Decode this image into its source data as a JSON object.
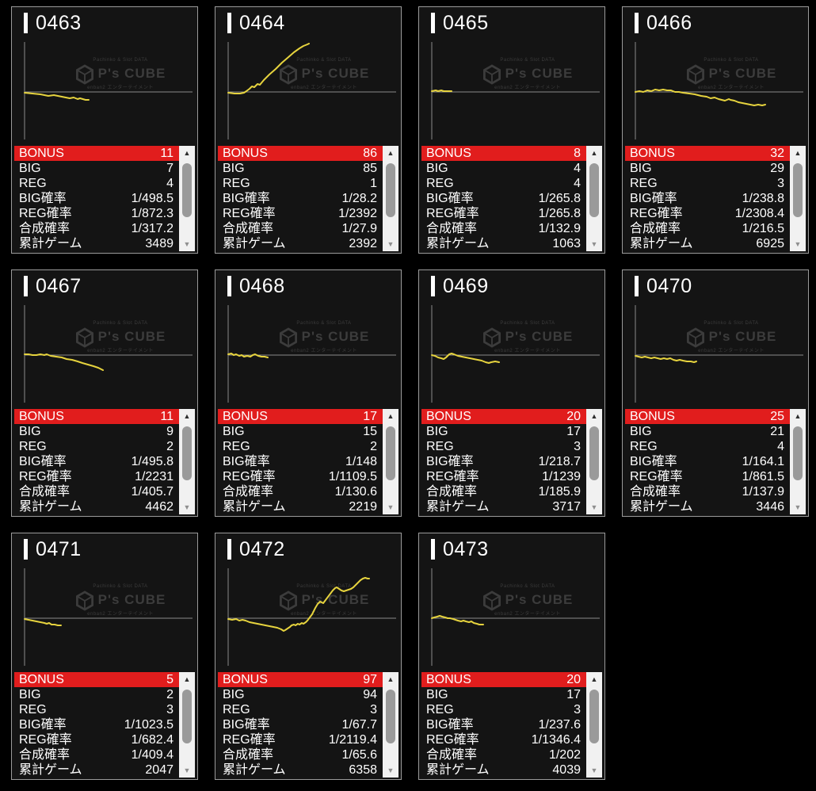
{
  "watermark": {
    "top": "Pachinko & Slot DATA",
    "brand": "P's CUBE",
    "bottom": "enban2 エンターテイメント"
  },
  "table_labels": [
    "BONUS",
    "BIG",
    "REG",
    "BIG確率",
    "REG確率",
    "合成確率",
    "累計ゲーム"
  ],
  "scrollbar": {
    "up_arrow": "▲",
    "down_arrow": "▼"
  },
  "colors": {
    "background": "#000000",
    "panel_bg": "#141414",
    "panel_border": "#9b9b9b",
    "bonus_row_bg": "#e11d1d",
    "chart_line": "#e6d33e",
    "axis": "#8a8a8a",
    "watermark": "#3c3c3c",
    "text": "#ffffff"
  },
  "chart_data": {
    "type": "line",
    "note": "slump graphs; points are svg coords, horizontal axis at y=67"
  },
  "machines": [
    {
      "id": "0463",
      "bonus": "11",
      "big": "7",
      "reg": "4",
      "big_rate": "1/498.5",
      "reg_rate": "1/872.3",
      "combined_rate": "1/317.2",
      "total_games": "3489",
      "chart_points": [
        [
          16,
          68
        ],
        [
          26,
          69
        ],
        [
          36,
          70
        ],
        [
          46,
          72
        ],
        [
          53,
          71
        ],
        [
          63,
          73
        ],
        [
          73,
          75
        ],
        [
          78,
          74
        ],
        [
          83,
          76
        ],
        [
          86,
          75
        ],
        [
          93,
          77
        ],
        [
          97,
          77
        ]
      ]
    },
    {
      "id": "0464",
      "bonus": "86",
      "big": "85",
      "reg": "1",
      "big_rate": "1/28.2",
      "reg_rate": "1/2392",
      "combined_rate": "1/27.9",
      "total_games": "2392",
      "chart_points": [
        [
          16,
          68
        ],
        [
          24,
          69
        ],
        [
          31,
          69
        ],
        [
          36,
          68
        ],
        [
          39,
          66
        ],
        [
          43,
          63
        ],
        [
          46,
          60
        ],
        [
          49,
          61
        ],
        [
          53,
          57
        ],
        [
          56,
          58
        ],
        [
          61,
          52
        ],
        [
          68,
          45
        ],
        [
          76,
          38
        ],
        [
          84,
          30
        ],
        [
          91,
          24
        ],
        [
          99,
          17
        ],
        [
          106,
          12
        ],
        [
          111,
          9
        ],
        [
          116,
          7
        ],
        [
          118,
          6
        ]
      ]
    },
    {
      "id": "0465",
      "bonus": "8",
      "big": "4",
      "reg": "4",
      "big_rate": "1/265.8",
      "reg_rate": "1/265.8",
      "combined_rate": "1/132.9",
      "total_games": "1063",
      "chart_points": [
        [
          16,
          66
        ],
        [
          21,
          65
        ],
        [
          24,
          66
        ],
        [
          28,
          65
        ],
        [
          31,
          66
        ],
        [
          36,
          66
        ],
        [
          41,
          66
        ]
      ]
    },
    {
      "id": "0466",
      "bonus": "32",
      "big": "29",
      "reg": "3",
      "big_rate": "1/238.8",
      "reg_rate": "1/2308.4",
      "combined_rate": "1/216.5",
      "total_games": "6925",
      "chart_points": [
        [
          16,
          67
        ],
        [
          21,
          66
        ],
        [
          26,
          67
        ],
        [
          31,
          65
        ],
        [
          36,
          66
        ],
        [
          41,
          64
        ],
        [
          46,
          65
        ],
        [
          51,
          64
        ],
        [
          56,
          65
        ],
        [
          61,
          65
        ],
        [
          66,
          67
        ],
        [
          71,
          67
        ],
        [
          76,
          68
        ],
        [
          84,
          69
        ],
        [
          91,
          70
        ],
        [
          99,
          72
        ],
        [
          106,
          73
        ],
        [
          111,
          75
        ],
        [
          116,
          74
        ],
        [
          121,
          76
        ],
        [
          129,
          78
        ],
        [
          134,
          76
        ],
        [
          136,
          77
        ],
        [
          141,
          78
        ],
        [
          146,
          80
        ],
        [
          151,
          81
        ],
        [
          156,
          82
        ],
        [
          161,
          83
        ],
        [
          166,
          84
        ],
        [
          171,
          83
        ],
        [
          176,
          84
        ],
        [
          180,
          83
        ]
      ]
    },
    {
      "id": "0467",
      "bonus": "11",
      "big": "9",
      "reg": "2",
      "big_rate": "1/495.8",
      "reg_rate": "1/2231",
      "combined_rate": "1/405.7",
      "total_games": "4462",
      "chart_points": [
        [
          16,
          66
        ],
        [
          21,
          66
        ],
        [
          26,
          67
        ],
        [
          31,
          67
        ],
        [
          36,
          66
        ],
        [
          41,
          67
        ],
        [
          44,
          66
        ],
        [
          49,
          68
        ],
        [
          56,
          69
        ],
        [
          63,
          70
        ],
        [
          69,
          72
        ],
        [
          76,
          73
        ],
        [
          83,
          75
        ],
        [
          89,
          77
        ],
        [
          96,
          79
        ],
        [
          103,
          81
        ],
        [
          109,
          83
        ],
        [
          113,
          85
        ],
        [
          115,
          86
        ]
      ]
    },
    {
      "id": "0468",
      "bonus": "17",
      "big": "15",
      "reg": "2",
      "big_rate": "1/148",
      "reg_rate": "1/1109.5",
      "combined_rate": "1/130.6",
      "total_games": "2219",
      "chart_points": [
        [
          16,
          66
        ],
        [
          20,
          65
        ],
        [
          23,
          67
        ],
        [
          26,
          66
        ],
        [
          30,
          68
        ],
        [
          33,
          67
        ],
        [
          36,
          69
        ],
        [
          40,
          68
        ],
        [
          44,
          69
        ],
        [
          47,
          67
        ],
        [
          50,
          66
        ],
        [
          54,
          68
        ],
        [
          58,
          69
        ],
        [
          62,
          69
        ],
        [
          66,
          70
        ]
      ]
    },
    {
      "id": "0469",
      "bonus": "20",
      "big": "17",
      "reg": "3",
      "big_rate": "1/218.7",
      "reg_rate": "1/1239",
      "combined_rate": "1/185.9",
      "total_games": "3717",
      "chart_points": [
        [
          16,
          67
        ],
        [
          20,
          68
        ],
        [
          24,
          70
        ],
        [
          28,
          71
        ],
        [
          31,
          72
        ],
        [
          34,
          70
        ],
        [
          38,
          66
        ],
        [
          41,
          65
        ],
        [
          44,
          66
        ],
        [
          49,
          68
        ],
        [
          54,
          69
        ],
        [
          59,
          70
        ],
        [
          64,
          71
        ],
        [
          69,
          72
        ],
        [
          74,
          73
        ],
        [
          79,
          74
        ],
        [
          84,
          76
        ],
        [
          88,
          77
        ],
        [
          91,
          76
        ],
        [
          96,
          75
        ],
        [
          101,
          76
        ]
      ]
    },
    {
      "id": "0470",
      "bonus": "25",
      "big": "21",
      "reg": "4",
      "big_rate": "1/164.1",
      "reg_rate": "1/861.5",
      "combined_rate": "1/137.9",
      "total_games": "3446",
      "chart_points": [
        [
          16,
          68
        ],
        [
          20,
          69
        ],
        [
          24,
          70
        ],
        [
          28,
          69
        ],
        [
          32,
          70
        ],
        [
          36,
          71
        ],
        [
          40,
          70
        ],
        [
          44,
          71
        ],
        [
          48,
          72
        ],
        [
          52,
          71
        ],
        [
          56,
          72
        ],
        [
          60,
          71
        ],
        [
          64,
          73
        ],
        [
          68,
          74
        ],
        [
          72,
          73
        ],
        [
          76,
          74
        ],
        [
          81,
          75
        ],
        [
          86,
          75
        ],
        [
          90,
          76
        ],
        [
          93,
          75
        ]
      ]
    },
    {
      "id": "0471",
      "bonus": "5",
      "big": "2",
      "reg": "3",
      "big_rate": "1/1023.5",
      "reg_rate": "1/682.4",
      "combined_rate": "1/409.4",
      "total_games": "2047",
      "chart_points": [
        [
          16,
          68
        ],
        [
          21,
          69
        ],
        [
          26,
          70
        ],
        [
          31,
          71
        ],
        [
          36,
          72
        ],
        [
          41,
          73
        ],
        [
          44,
          74
        ],
        [
          47,
          73
        ],
        [
          50,
          75
        ],
        [
          54,
          75
        ],
        [
          58,
          76
        ],
        [
          62,
          76
        ]
      ]
    },
    {
      "id": "0472",
      "bonus": "97",
      "big": "94",
      "reg": "3",
      "big_rate": "1/67.7",
      "reg_rate": "1/2119.4",
      "combined_rate": "1/65.6",
      "total_games": "6358",
      "chart_points": [
        [
          16,
          68
        ],
        [
          21,
          69
        ],
        [
          26,
          68
        ],
        [
          30,
          70
        ],
        [
          34,
          69
        ],
        [
          38,
          70
        ],
        [
          43,
          72
        ],
        [
          48,
          73
        ],
        [
          53,
          74
        ],
        [
          58,
          75
        ],
        [
          63,
          76
        ],
        [
          68,
          77
        ],
        [
          73,
          78
        ],
        [
          78,
          79
        ],
        [
          83,
          81
        ],
        [
          86,
          83
        ],
        [
          88,
          82
        ],
        [
          91,
          80
        ],
        [
          94,
          78
        ],
        [
          96,
          76
        ],
        [
          99,
          75
        ],
        [
          101,
          76
        ],
        [
          104,
          74
        ],
        [
          106,
          75
        ],
        [
          109,
          73
        ],
        [
          111,
          74
        ],
        [
          114,
          72
        ],
        [
          116,
          70
        ],
        [
          119,
          66
        ],
        [
          122,
          62
        ],
        [
          124,
          58
        ],
        [
          126,
          54
        ],
        [
          129,
          49
        ],
        [
          132,
          46
        ],
        [
          134,
          47
        ],
        [
          136,
          48
        ],
        [
          139,
          44
        ],
        [
          142,
          40
        ],
        [
          145,
          36
        ],
        [
          148,
          32
        ],
        [
          151,
          29
        ],
        [
          153,
          28
        ],
        [
          156,
          30
        ],
        [
          159,
          32
        ],
        [
          162,
          33
        ],
        [
          165,
          32
        ],
        [
          168,
          31
        ],
        [
          171,
          30
        ],
        [
          174,
          28
        ],
        [
          177,
          25
        ],
        [
          180,
          22
        ],
        [
          183,
          19
        ],
        [
          186,
          17
        ],
        [
          189,
          16
        ],
        [
          192,
          17
        ],
        [
          194,
          17
        ]
      ]
    },
    {
      "id": "0473",
      "bonus": "20",
      "big": "17",
      "reg": "3",
      "big_rate": "1/237.6",
      "reg_rate": "1/1346.4",
      "combined_rate": "1/202",
      "total_games": "4039",
      "chart_points": [
        [
          16,
          67
        ],
        [
          19,
          66
        ],
        [
          23,
          65
        ],
        [
          26,
          64
        ],
        [
          29,
          65
        ],
        [
          33,
          66
        ],
        [
          36,
          67
        ],
        [
          39,
          67
        ],
        [
          43,
          68
        ],
        [
          46,
          69
        ],
        [
          49,
          70
        ],
        [
          53,
          71
        ],
        [
          56,
          70
        ],
        [
          59,
          71
        ],
        [
          63,
          72
        ],
        [
          66,
          71
        ],
        [
          69,
          73
        ],
        [
          73,
          74
        ],
        [
          76,
          75
        ],
        [
          79,
          75
        ],
        [
          81,
          75
        ]
      ]
    }
  ]
}
